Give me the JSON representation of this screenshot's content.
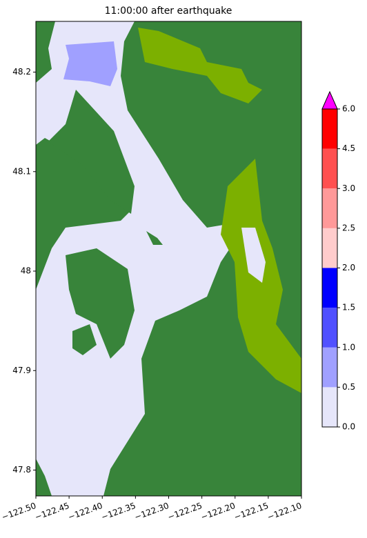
{
  "chart_data": {
    "type": "map",
    "title": "11:00:00 after earthquake",
    "xlim": [
      -122.5,
      -122.1
    ],
    "ylim": [
      47.774,
      48.251
    ],
    "xticks": [
      {
        "value": -122.5,
        "label": "−122.50"
      },
      {
        "value": -122.45,
        "label": "−122.45"
      },
      {
        "value": -122.4,
        "label": "−122.40"
      },
      {
        "value": -122.35,
        "label": "−122.35"
      },
      {
        "value": -122.3,
        "label": "−122.30"
      },
      {
        "value": -122.25,
        "label": "−122.25"
      },
      {
        "value": -122.2,
        "label": "−122.20"
      },
      {
        "value": -122.15,
        "label": "−122.15"
      },
      {
        "value": -122.1,
        "label": "−122.10"
      }
    ],
    "yticks": [
      47.8,
      47.9,
      48.0,
      {
        "value": 48.1,
        "label": "48.1"
      },
      48.2
    ],
    "colorbar": {
      "levels": [
        0,
        0.5,
        1,
        1.5,
        2,
        2.5,
        3,
        4.5,
        6
      ],
      "colors": [
        "#e6e6fa",
        "#a0a0ff",
        "#5050ff",
        "#0000ff",
        "#ffcccc",
        "#ff9999",
        "#ff5050",
        "#ff0000"
      ],
      "extend_color": "#ff00ff",
      "ticks": [
        {
          "value": 0,
          "label": "0.0"
        },
        0.5,
        {
          "value": 1,
          "label": "1.0"
        },
        1.5,
        {
          "value": 2,
          "label": "2.0"
        },
        2.5,
        {
          "value": 3,
          "label": "3.0"
        },
        4.5,
        {
          "value": 6,
          "label": "6.0"
        }
      ]
    }
  }
}
